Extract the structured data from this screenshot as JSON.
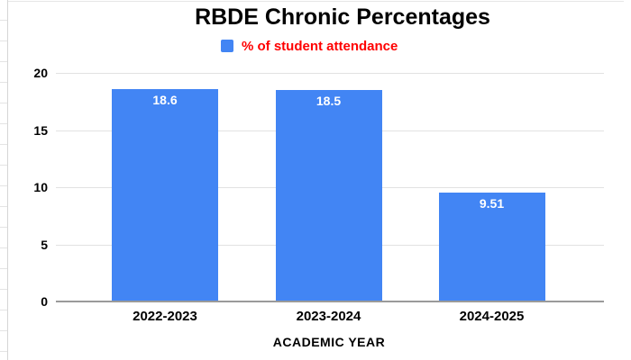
{
  "chart_data": {
    "type": "bar",
    "title": "RBDE Chronic Percentages",
    "legend": {
      "label": "% of student attendance",
      "position": "top"
    },
    "categories": [
      "2022-2023",
      "2023-2024",
      "2024-2025"
    ],
    "values": [
      18.6,
      18.5,
      9.51
    ],
    "value_labels": [
      "18.6",
      "18.5",
      "9.51"
    ],
    "xlabel": "ACADEMIC YEAR",
    "ylabel": "",
    "ylim": [
      0,
      20
    ],
    "yticks": [
      0,
      5,
      10,
      15,
      20
    ],
    "grid": true,
    "bar_color": "#4285f4",
    "value_label_color": "#ffffff",
    "legend_text_color": "#ff0000",
    "title_color": "#000000",
    "axis_text_color": "#000000"
  }
}
